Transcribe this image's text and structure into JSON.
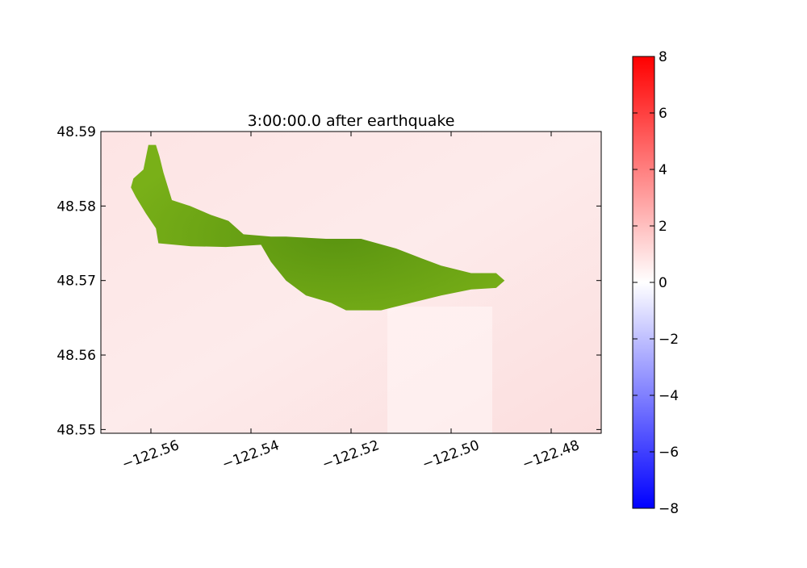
{
  "chart_data": {
    "type": "heatmap",
    "title": "3:00:00.0 after earthquake",
    "xlabel": "",
    "ylabel": "",
    "xlim": [
      -122.57,
      -122.47
    ],
    "ylim": [
      48.5495,
      48.59
    ],
    "x_ticks": [
      -122.56,
      -122.54,
      -122.52,
      -122.5,
      -122.48
    ],
    "x_tick_labels": [
      "−122.56",
      "−122.54",
      "−122.52",
      "−122.50",
      "−122.48"
    ],
    "y_ticks": [
      48.59,
      48.58,
      48.57,
      48.56,
      48.55
    ],
    "y_tick_labels": [
      "48.59",
      "48.58",
      "48.57",
      "48.56",
      "48.55"
    ],
    "grid": false,
    "colormap": "bwr",
    "colors": {
      "low": "#0000ff",
      "mid": "#ffffff",
      "high": "#ff0000",
      "land": "#6aa513",
      "land_dark": "#5a9410"
    },
    "colorbar": {
      "range": [
        -8,
        8
      ],
      "ticks": [
        8,
        6,
        4,
        2,
        0,
        -2,
        -4,
        -6,
        -8
      ],
      "tick_labels": [
        "8",
        "6",
        "4",
        "2",
        "0",
        "−2",
        "−4",
        "−6",
        "−8"
      ]
    },
    "field": {
      "background_value": 1.0,
      "range_across_map": [
        0.5,
        1.3
      ]
    },
    "land_polygon": {
      "name": "island",
      "points": [
        [
          -122.5635,
          48.5837
        ],
        [
          -122.5615,
          48.5849
        ],
        [
          -122.5605,
          48.5882
        ],
        [
          -122.559,
          48.5882
        ],
        [
          -122.5583,
          48.5867
        ],
        [
          -122.5575,
          48.5845
        ],
        [
          -122.5558,
          48.5808
        ],
        [
          -122.5522,
          48.58
        ],
        [
          -122.548,
          48.5788
        ],
        [
          -122.5445,
          48.578
        ],
        [
          -122.5415,
          48.5762
        ],
        [
          -122.536,
          48.5759
        ],
        [
          -122.533,
          48.5759
        ],
        [
          -122.525,
          48.5756
        ],
        [
          -122.518,
          48.5756
        ],
        [
          -122.511,
          48.5743
        ],
        [
          -122.506,
          48.573
        ],
        [
          -122.502,
          48.572
        ],
        [
          -122.496,
          48.571
        ],
        [
          -122.491,
          48.571
        ],
        [
          -122.4893,
          48.57
        ],
        [
          -122.491,
          48.569
        ],
        [
          -122.496,
          48.5688
        ],
        [
          -122.502,
          48.568
        ],
        [
          -122.508,
          48.567
        ],
        [
          -122.514,
          48.566
        ],
        [
          -122.521,
          48.566
        ],
        [
          -122.524,
          48.567
        ],
        [
          -122.529,
          48.568
        ],
        [
          -122.533,
          48.57
        ],
        [
          -122.536,
          48.5725
        ],
        [
          -122.538,
          48.5748
        ],
        [
          -122.545,
          48.5745
        ],
        [
          -122.552,
          48.5746
        ],
        [
          -122.5585,
          48.575
        ],
        [
          -122.559,
          48.577
        ],
        [
          -122.561,
          48.579
        ],
        [
          -122.563,
          48.5812
        ],
        [
          -122.564,
          48.5825
        ]
      ]
    }
  }
}
